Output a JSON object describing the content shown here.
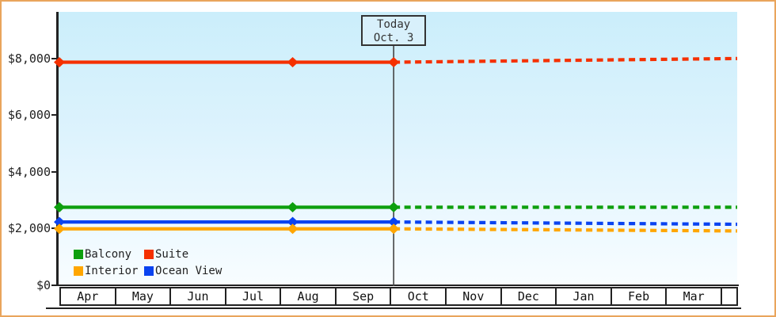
{
  "window": {
    "background": "#ffffff",
    "border_color": "#e9a55c"
  },
  "chart_data": {
    "type": "line",
    "title": "",
    "xlabel": "",
    "ylabel": "",
    "grid": false,
    "plot_bg_top_color": "#cbeefb",
    "plot_bg_bottom_color": "#f8fdff",
    "x_axis": {
      "categories": [
        "Apr",
        "May",
        "Jun",
        "Jul",
        "Aug",
        "Sep",
        "Oct",
        "Nov",
        "Dec",
        "Jan",
        "Feb",
        "Mar"
      ]
    },
    "y_axis": {
      "ticks": [
        {
          "label": "$8,000",
          "value": 8000
        },
        {
          "label": "$6,000",
          "value": 6000
        },
        {
          "label": "$4,000",
          "value": 4000
        },
        {
          "label": "$2,000",
          "value": 2000
        },
        {
          "label": "$0",
          "value": 0
        }
      ],
      "range": [
        0,
        9600
      ]
    },
    "today_annotation": {
      "line1": "Today",
      "line2": "Oct. 3",
      "month": "Oct",
      "day": 3,
      "line_color": "#444444"
    },
    "series": [
      {
        "name": "Balcony",
        "color": "#0d9f0d",
        "value": 2750,
        "forecast_end": 2750,
        "markers": [
          {
            "month": "Apr",
            "day": 1
          },
          {
            "month": "Aug",
            "day": 8
          },
          {
            "month": "Oct",
            "day": 3
          }
        ]
      },
      {
        "name": "Ocean View",
        "color": "#0a43f0",
        "value": 2230,
        "forecast_end": 2150,
        "markers": [
          {
            "month": "Apr",
            "day": 1
          },
          {
            "month": "Aug",
            "day": 8
          },
          {
            "month": "Oct",
            "day": 3
          }
        ]
      },
      {
        "name": "Interior",
        "color": "#ffa600",
        "value": 1990,
        "forecast_end": 1915,
        "markers": [
          {
            "month": "Apr",
            "day": 1
          },
          {
            "month": "Aug",
            "day": 8
          },
          {
            "month": "Oct",
            "day": 3
          }
        ]
      },
      {
        "name": "Suite",
        "color": "#f53000",
        "value": 7860,
        "forecast_end": 7990,
        "markers": [
          {
            "month": "Apr",
            "day": 1
          },
          {
            "month": "Aug",
            "day": 8
          },
          {
            "month": "Oct",
            "day": 3
          }
        ]
      }
    ],
    "legend": {
      "position": "bottom-left",
      "items": [
        {
          "label": "Balcony",
          "color": "#0d9f0d"
        },
        {
          "label": "Suite",
          "color": "#f53000"
        },
        {
          "label": "Interior",
          "color": "#ffa600"
        },
        {
          "label": "Ocean View",
          "color": "#0a43f0"
        }
      ]
    }
  }
}
